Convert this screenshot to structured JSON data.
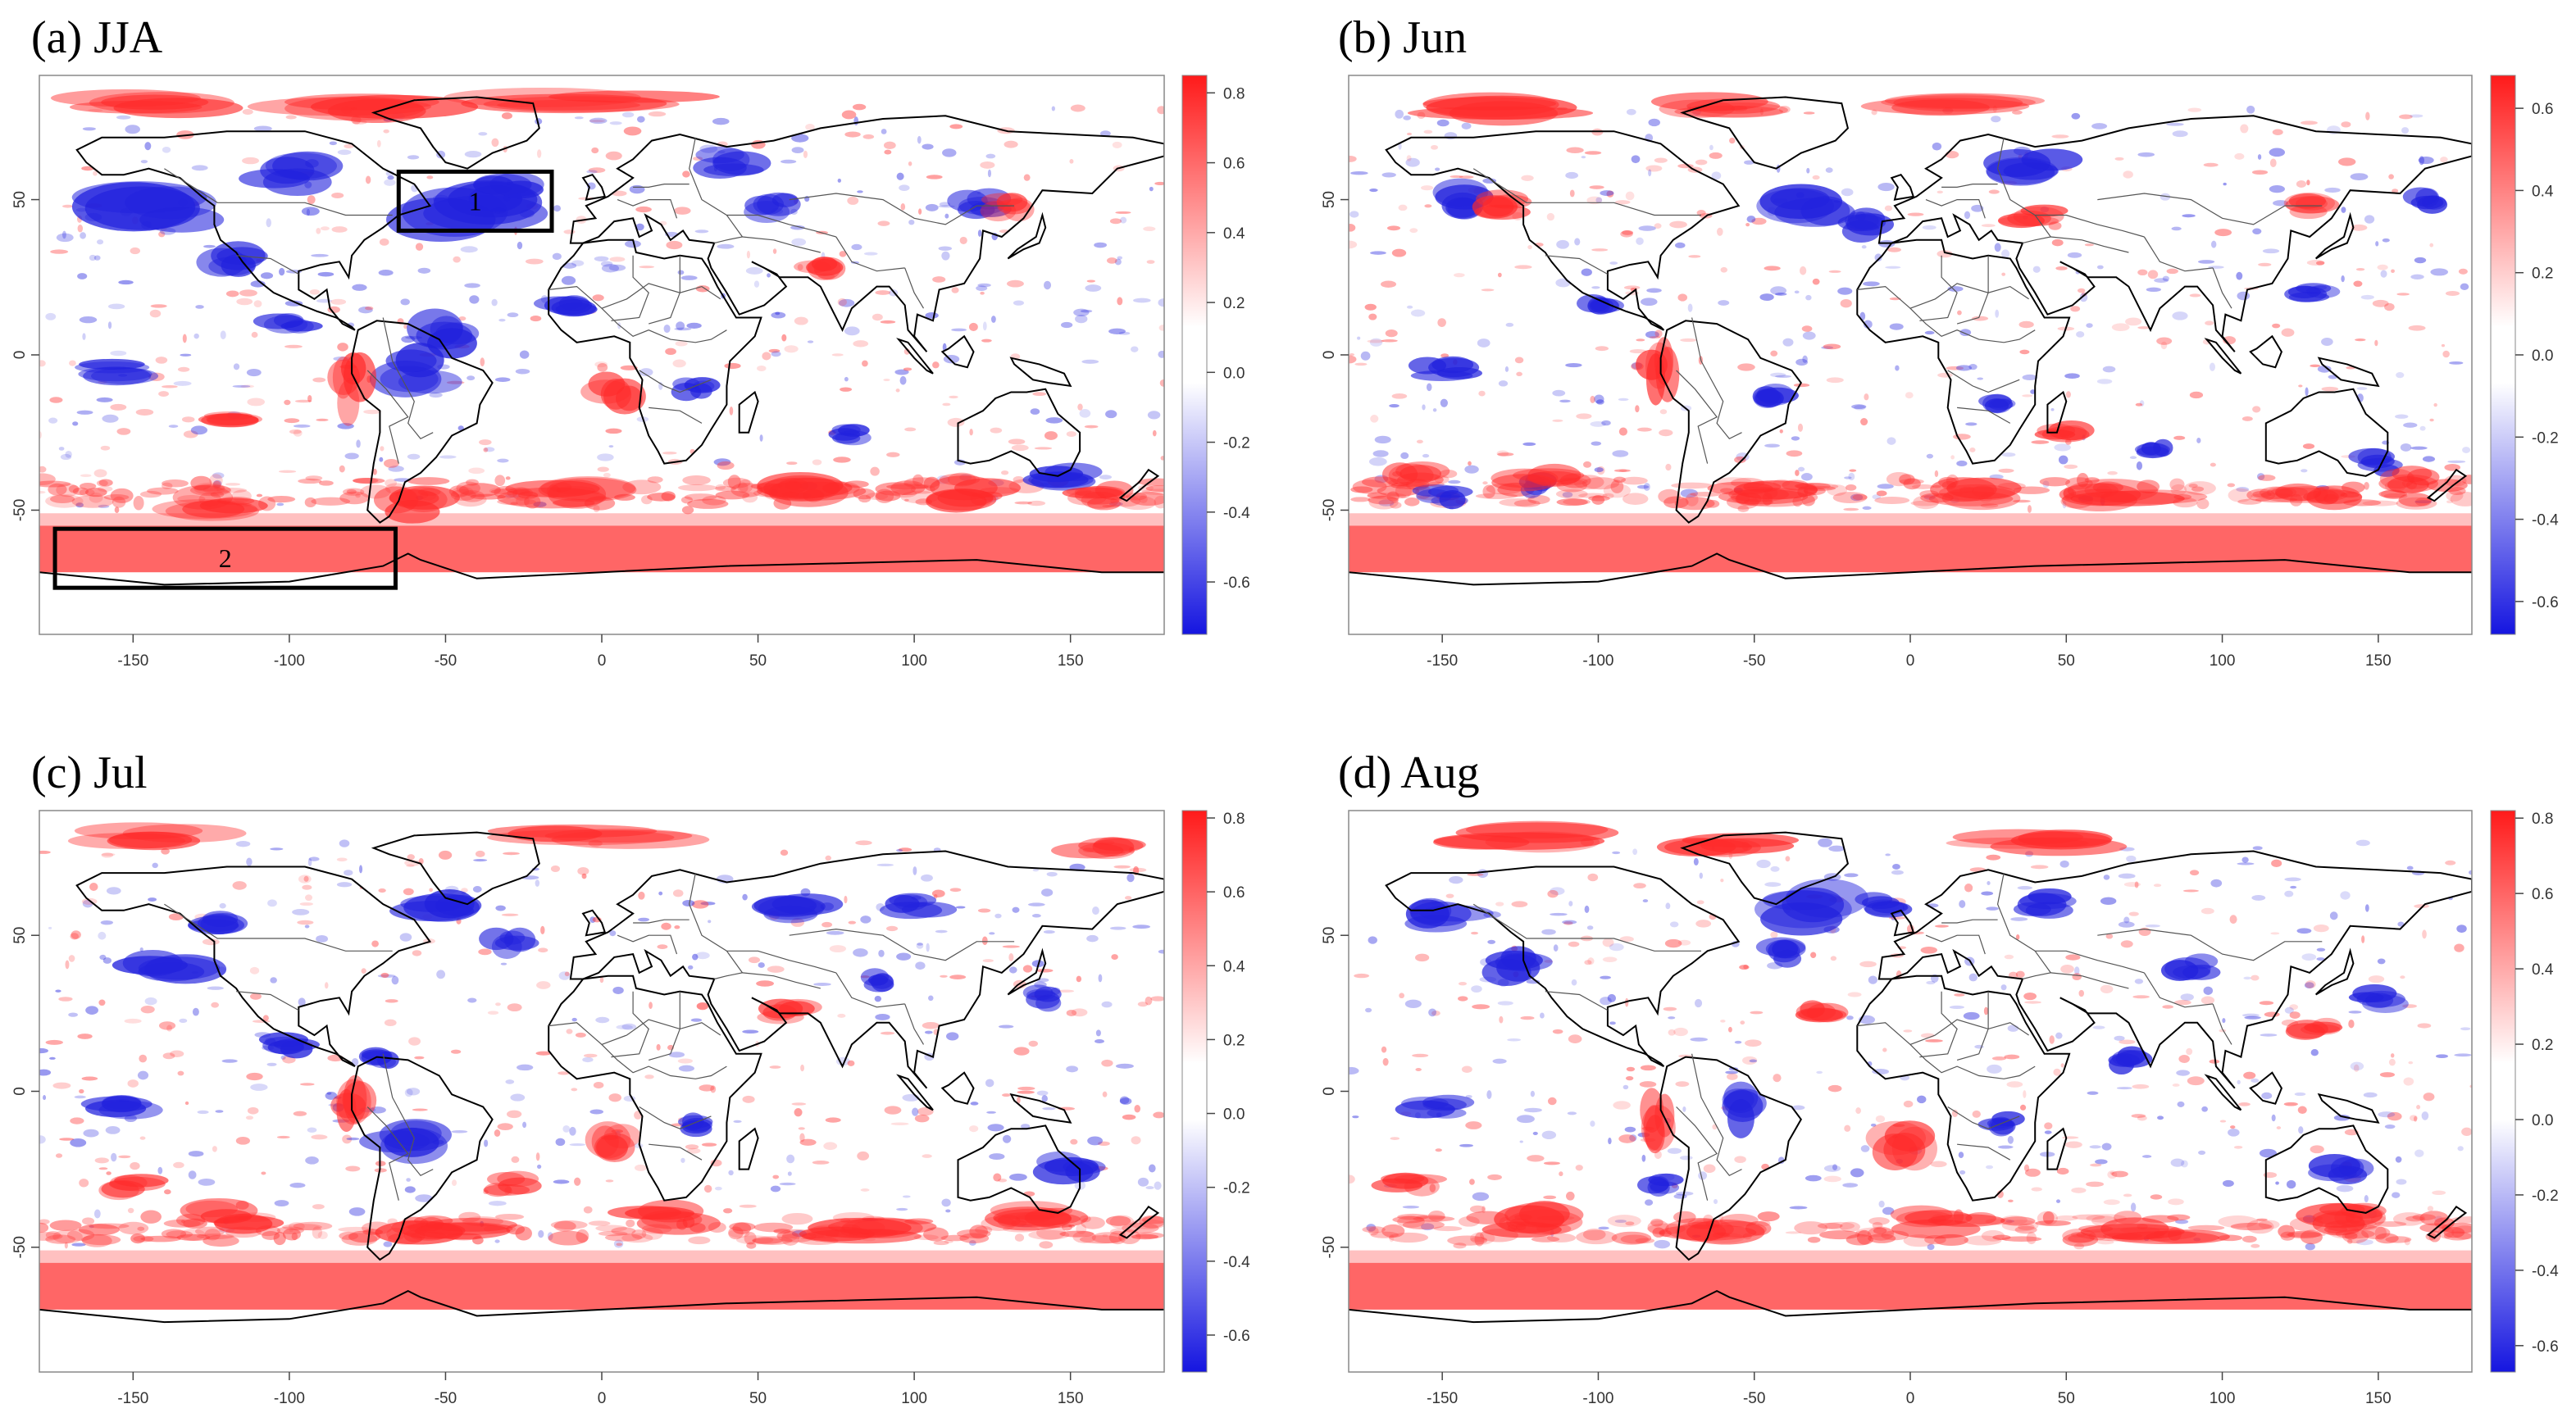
{
  "figure": {
    "panels": [
      {
        "id": "a",
        "title": "(a) JJA",
        "x_ticks": [
          "-150",
          "-100",
          "-50",
          "0",
          "50",
          "100",
          "150"
        ],
        "y_ticks": [
          "50",
          "0",
          "-50"
        ],
        "colorbar": {
          "labels": [
            "0.8",
            "0.6",
            "0.4",
            "0.2",
            "0.0",
            "-0.2",
            "-0.4",
            "-0.6"
          ],
          "range": [
            -0.75,
            0.85
          ]
        },
        "boxes": [
          {
            "label": "1",
            "lon": [
              -65,
              -16
            ],
            "lat": [
              40,
              59
            ]
          },
          {
            "label": "2",
            "lon": [
              -175,
              -66
            ],
            "lat": [
              -75,
              -56
            ]
          }
        ]
      },
      {
        "id": "b",
        "title": "(b) Jun",
        "x_ticks": [
          "-150",
          "-100",
          "-50",
          "0",
          "50",
          "100",
          "150"
        ],
        "y_ticks": [
          "50",
          "0",
          "-50"
        ],
        "colorbar": {
          "labels": [
            "0.6",
            "0.4",
            "0.2",
            "0.0",
            "-0.2",
            "-0.4",
            "-0.6"
          ],
          "range": [
            -0.68,
            0.68
          ]
        },
        "boxes": []
      },
      {
        "id": "c",
        "title": "(c) Jul",
        "x_ticks": [
          "-150",
          "-100",
          "-50",
          "0",
          "50",
          "100",
          "150"
        ],
        "y_ticks": [
          "50",
          "0",
          "-50"
        ],
        "colorbar": {
          "labels": [
            "0.8",
            "0.6",
            "0.4",
            "0.2",
            "0.0",
            "-0.2",
            "-0.4",
            "-0.6"
          ],
          "range": [
            -0.7,
            0.82
          ]
        },
        "boxes": []
      },
      {
        "id": "d",
        "title": "(d) Aug",
        "x_ticks": [
          "-150",
          "-100",
          "-50",
          "0",
          "50",
          "100",
          "150"
        ],
        "y_ticks": [
          "50",
          "0",
          "-50"
        ],
        "colorbar": {
          "labels": [
            "0.8",
            "0.6",
            "0.4",
            "0.2",
            "0.0",
            "-0.2",
            "-0.4",
            "-0.6"
          ],
          "range": [
            -0.67,
            0.82
          ]
        },
        "boxes": []
      }
    ],
    "colors": {
      "positive": "#ff2222",
      "negative": "#2a2ad6",
      "neutral": "#ffffff",
      "coast": "#000000",
      "border": "#555555"
    }
  }
}
